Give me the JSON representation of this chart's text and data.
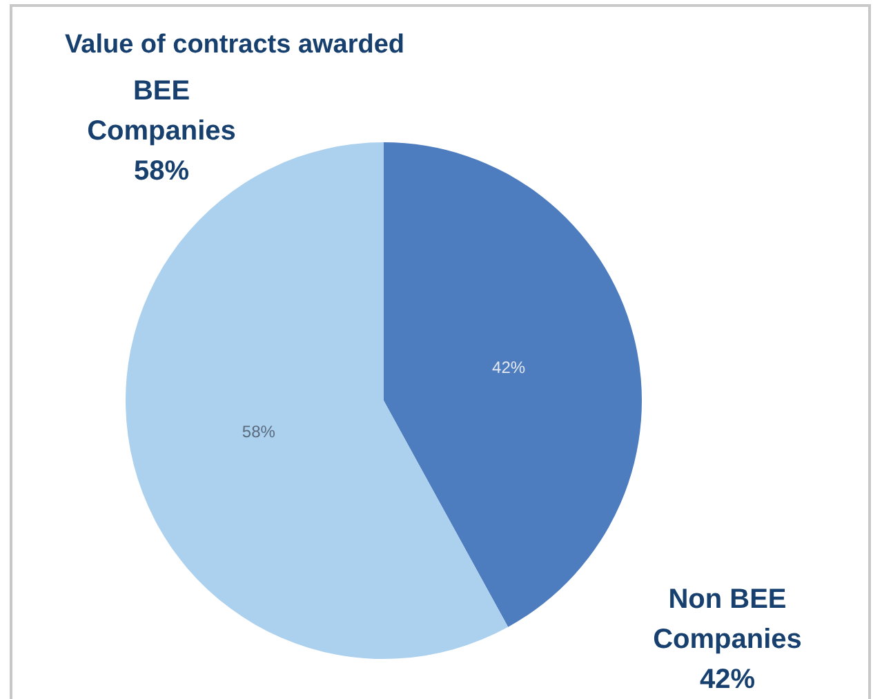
{
  "chart_data": {
    "type": "pie",
    "title": "Value of contracts awarded",
    "categories": [
      "Non BEE Companies",
      "BEE Companies"
    ],
    "values": [
      42,
      58
    ],
    "value_labels": [
      "42%",
      "58%"
    ],
    "colors": [
      "#4d7cbf",
      "#acd1ef"
    ],
    "legend": false
  }
}
